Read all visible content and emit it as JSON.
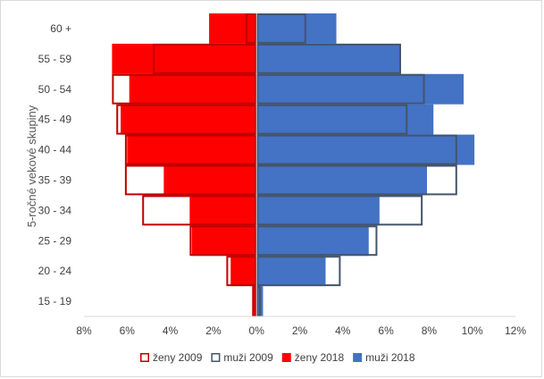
{
  "chart_data": {
    "type": "bar",
    "orientation": "horizontal",
    "subtype": "population-pyramid",
    "ylabel": "5-ročné vekové skupiny",
    "categories": [
      "60 +",
      "55 - 59",
      "50 - 54",
      "45 - 49",
      "40 - 44",
      "35 - 39",
      "30 - 34",
      "25 - 29",
      "20 - 24",
      "15 - 19"
    ],
    "xlim": [
      -8,
      12
    ],
    "x_ticks": [
      "8%",
      "6%",
      "4%",
      "2%",
      "0%",
      "2%",
      "4%",
      "6%",
      "8%",
      "10%",
      "12%"
    ],
    "grid": false,
    "legend_position": "bottom",
    "series": [
      {
        "name": "ženy 2009",
        "style": "outline",
        "color": "#c00000",
        "side": "left",
        "values": [
          0.5,
          4.8,
          6.7,
          6.5,
          6.1,
          6.1,
          5.3,
          3.1,
          1.4,
          0.2
        ]
      },
      {
        "name": "muži 2009",
        "style": "outline",
        "color": "#44546a",
        "side": "right",
        "values": [
          2.3,
          6.7,
          7.8,
          7.0,
          9.3,
          9.3,
          7.7,
          5.6,
          3.9,
          0.2
        ]
      },
      {
        "name": "ženy 2018",
        "style": "filled",
        "color": "#ff0000",
        "side": "left",
        "values": [
          2.2,
          6.7,
          5.9,
          6.3,
          6.0,
          4.3,
          3.1,
          3.0,
          1.2,
          0.2
        ]
      },
      {
        "name": "muži 2018",
        "style": "filled",
        "color": "#4472c4",
        "side": "right",
        "values": [
          3.7,
          6.7,
          9.6,
          8.2,
          10.1,
          7.9,
          5.7,
          5.2,
          3.2,
          0.3
        ]
      }
    ]
  }
}
